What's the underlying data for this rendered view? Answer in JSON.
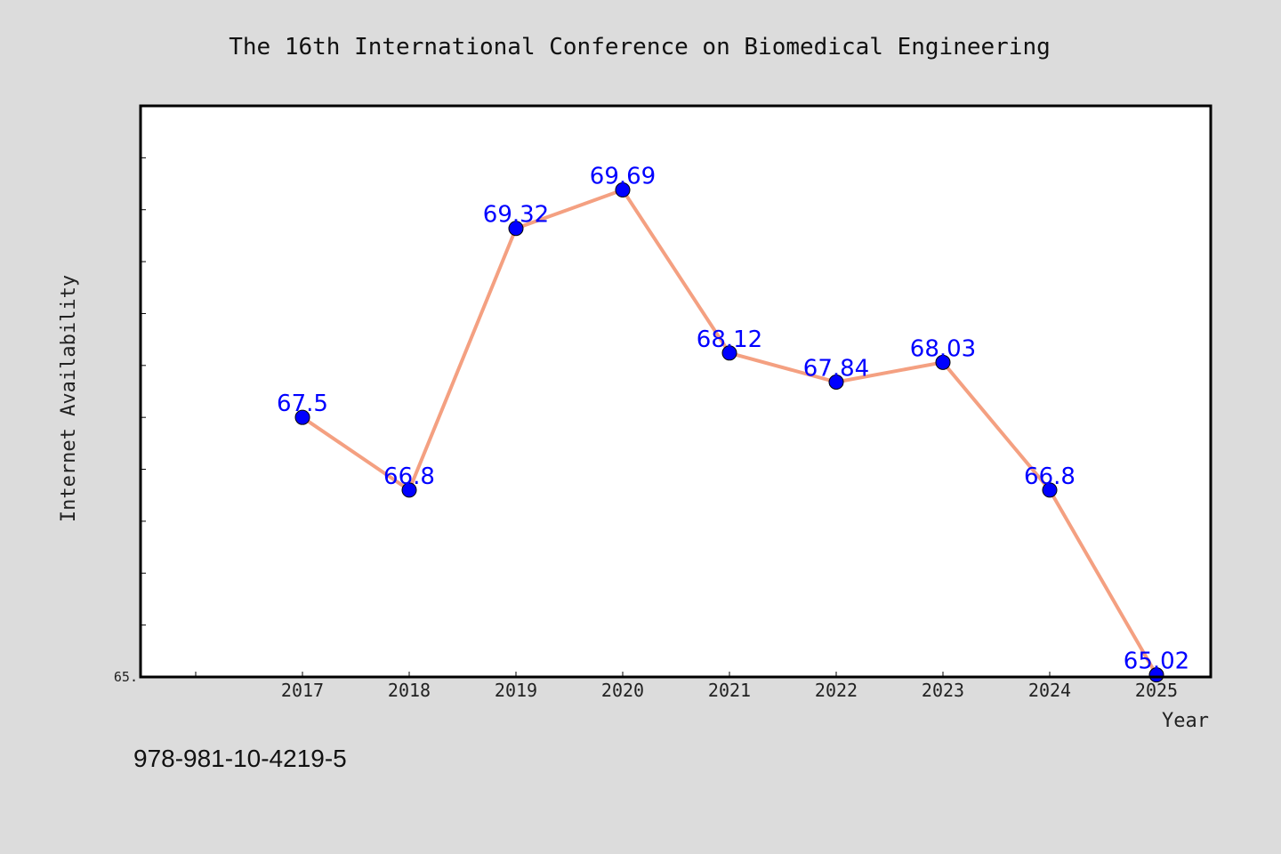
{
  "chart_data": {
    "type": "line",
    "title": "The 16th International Conference on Biomedical Engineering",
    "xlabel": "Year",
    "ylabel": "Internet Availability",
    "x": [
      "2017",
      "2018",
      "2019",
      "2020",
      "2021",
      "2022",
      "2023",
      "2024",
      "2025"
    ],
    "series": [
      {
        "values": [
          67.5,
          66.8,
          69.32,
          69.69,
          68.12,
          67.84,
          68.03,
          66.8,
          65.02
        ],
        "data_labels": [
          "67.5",
          "66.8",
          "69.32",
          "69.69",
          "68.12",
          "67.84",
          "68.03",
          "66.8",
          "65.02"
        ],
        "line_color": "#f4a081",
        "marker_color": "#0000ff"
      }
    ],
    "y_min_label": "65.",
    "ylim": [
      65.0,
      70.5
    ],
    "grid": false,
    "legend": "none"
  },
  "footer_note": "978-981-10-4219-5",
  "colors": {
    "background": "#dcdcdc",
    "plot_area": "#ffffff",
    "label_color": "#0000ff"
  }
}
